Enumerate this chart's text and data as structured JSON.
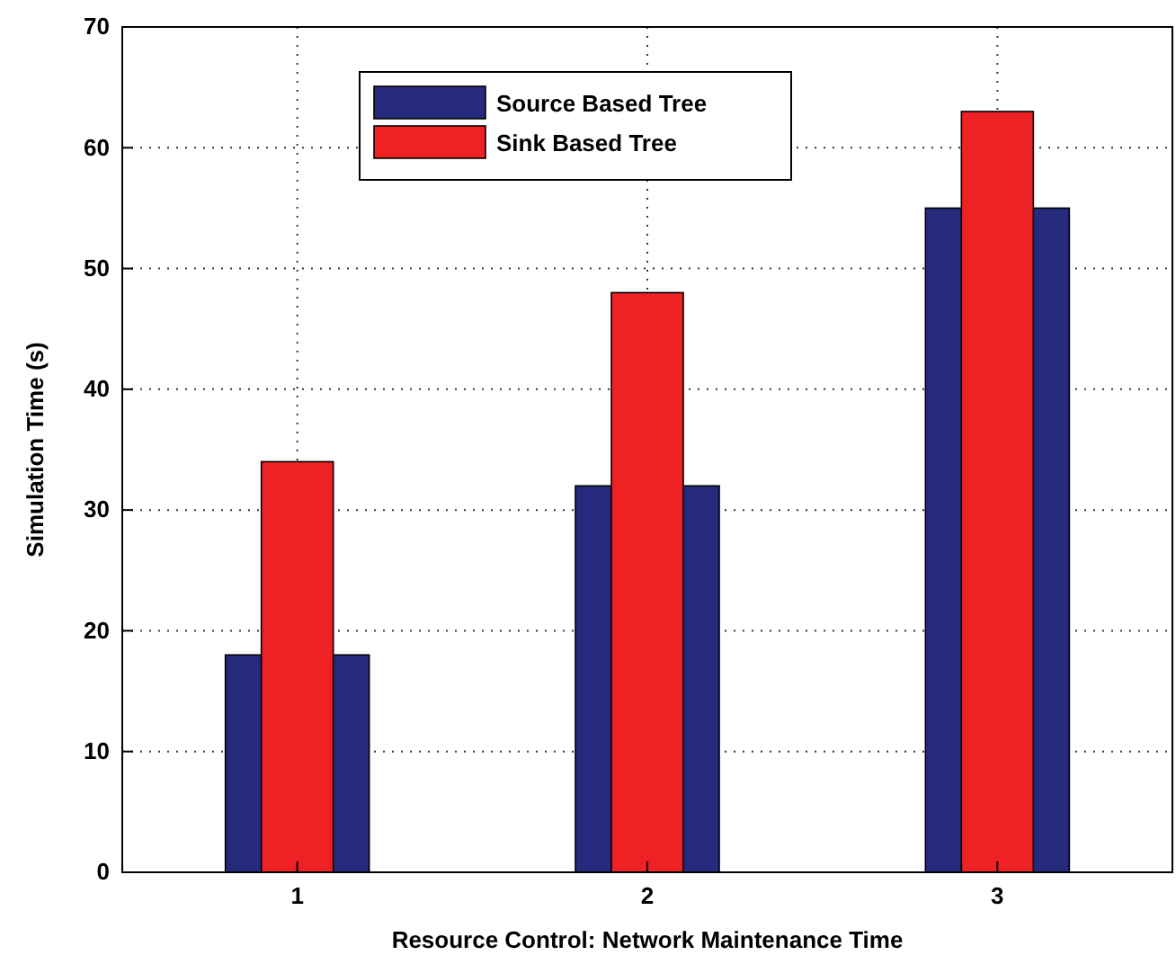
{
  "chart_data": {
    "type": "bar",
    "xlabel": "Resource Control: Network Maintenance Time",
    "ylabel": "Simulation Time (s)",
    "categories": [
      "1",
      "2",
      "3"
    ],
    "series": [
      {
        "name": "Source Based Tree",
        "color": "#262a7d",
        "values": [
          18,
          32,
          55
        ]
      },
      {
        "name": "Sink Based Tree",
        "color": "#ee2124",
        "values": [
          34,
          48,
          63
        ]
      }
    ],
    "ylim": [
      0,
      70
    ],
    "yticks": [
      0,
      10,
      20,
      30,
      40,
      50,
      60,
      70
    ],
    "grid": true,
    "legend": "top"
  }
}
